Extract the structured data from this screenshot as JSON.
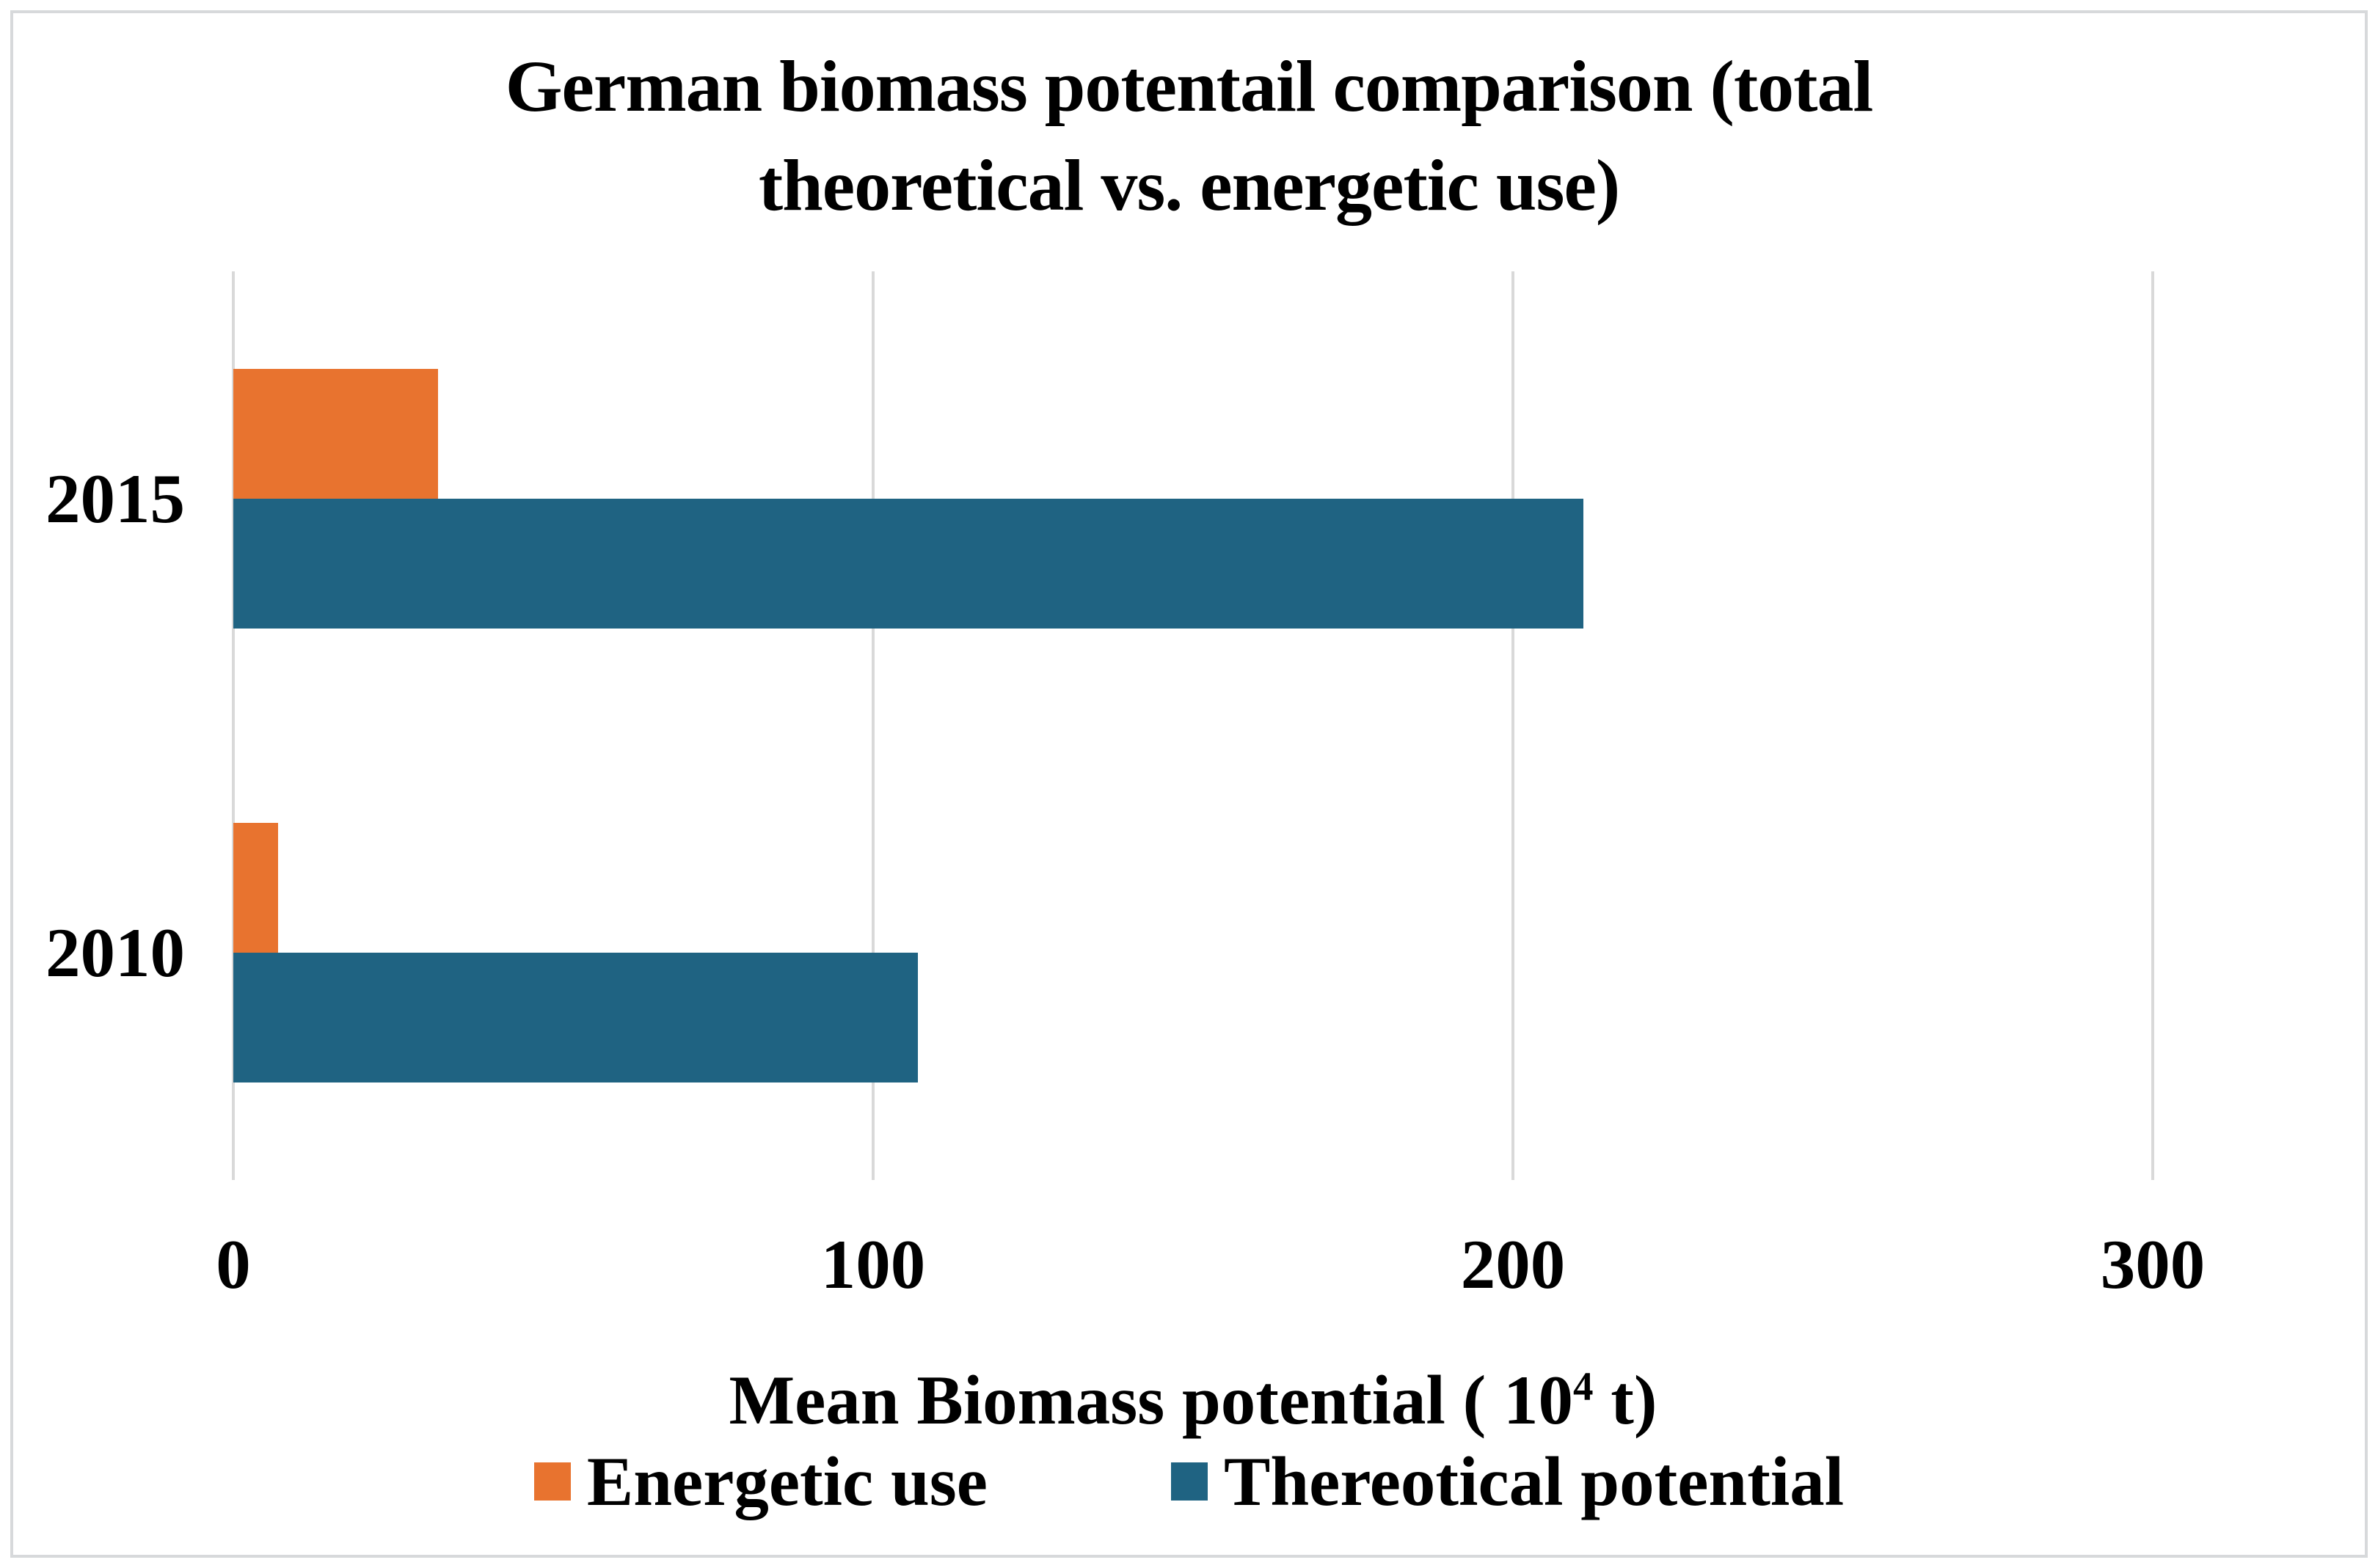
{
  "chart_data": {
    "type": "bar",
    "orientation": "horizontal",
    "title": "German biomass potentail comparison (total theoretical vs. energetic use)",
    "title_lines": [
      "German biomass potentail comparison (total",
      "theoretical vs. energetic use)"
    ],
    "xlabel": "Mean Biomass potential ( 10^4 t)",
    "xlabel_parts": {
      "prefix": "Mean Biomass potential ( 10",
      "sup": "4",
      "suffix": " t)"
    },
    "categories": [
      "2015",
      "2010"
    ],
    "series": [
      {
        "name": "Energetic use",
        "color": "#E8732F",
        "values": [
          32,
          7
        ]
      },
      {
        "name": "Thereotical potential",
        "color": "#1F6382",
        "values": [
          211,
          107
        ]
      }
    ],
    "xlim": [
      0,
      324
    ],
    "xticks": [
      0,
      100,
      200,
      300
    ],
    "xtick_labels": [
      "0",
      "100",
      "200",
      "300"
    ],
    "grid": "vertical-gridlines",
    "legend_position": "bottom"
  },
  "colors": {
    "gridline": "#D9D9D9",
    "frame_border": "#D7D9DB",
    "text": "#000000",
    "background": "#FFFFFF"
  }
}
